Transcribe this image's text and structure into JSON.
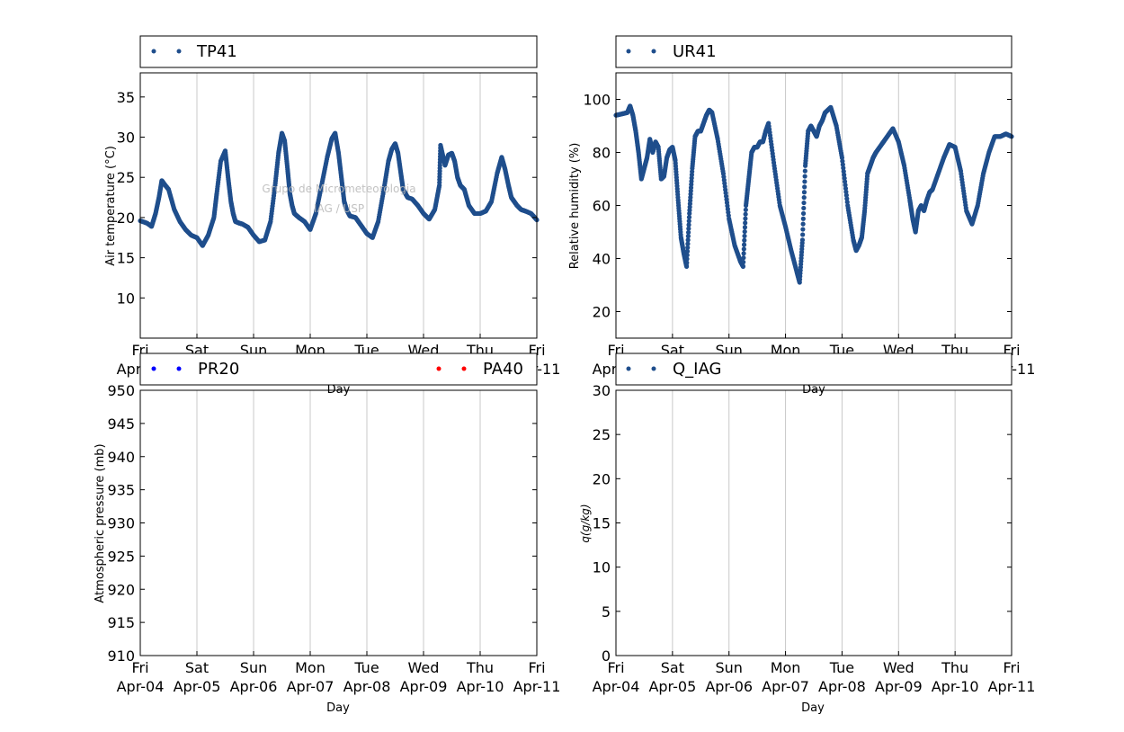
{
  "watermark": {
    "line1": "Grupo de Micrometeorologia",
    "line2": "IAG / USP"
  },
  "days": [
    {
      "dow": "Fri",
      "date": "Apr-04"
    },
    {
      "dow": "Sat",
      "date": "Apr-05"
    },
    {
      "dow": "Sun",
      "date": "Apr-06"
    },
    {
      "dow": "Mon",
      "date": "Apr-07"
    },
    {
      "dow": "Tue",
      "date": "Apr-08"
    },
    {
      "dow": "Wed",
      "date": "Apr-09"
    },
    {
      "dow": "Thu",
      "date": "Apr-10"
    },
    {
      "dow": "Fri",
      "date": "Apr-11"
    }
  ],
  "colors": {
    "series": "#1f4e8c",
    "pr20": "#0000ff",
    "pa40": "#ff0000",
    "grid": "#c8c8c8"
  },
  "chart_data": [
    {
      "type": "scatter",
      "id": "temp",
      "legend": [
        "TP41"
      ],
      "ylabel": "Air temperature (°C)",
      "xlabel": "Day",
      "ylim": [
        5,
        38
      ],
      "yticks": [
        "10",
        "15",
        "20",
        "25",
        "30",
        "35"
      ],
      "xlim": [
        "2025-04-04 00:00",
        "2025-04-11 00:00"
      ],
      "series": [
        {
          "name": "TP41",
          "color": "#1f4e8c",
          "x": [
            0,
            0.12,
            0.2,
            0.27,
            0.33,
            0.38,
            0.42,
            0.5,
            0.6,
            0.7,
            0.8,
            0.9,
            1.0,
            1.1,
            1.2,
            1.3,
            1.35,
            1.42,
            1.5,
            1.55,
            1.6,
            1.64,
            1.68,
            1.75,
            1.8,
            1.9,
            2.0,
            2.1,
            2.2,
            2.3,
            2.38,
            2.44,
            2.5,
            2.55,
            2.6,
            2.64,
            2.68,
            2.72,
            2.8,
            2.9,
            3.0,
            3.1,
            3.2,
            3.3,
            3.38,
            3.44,
            3.5,
            3.55,
            3.6,
            3.64,
            3.7,
            3.8,
            3.9,
            4.0,
            4.1,
            4.2,
            4.3,
            4.38,
            4.44,
            4.5,
            4.55,
            4.6,
            4.64,
            4.68,
            4.72,
            4.8,
            4.9,
            5.0,
            5.1,
            5.2,
            5.28,
            5.3,
            5.38,
            5.44,
            5.5,
            5.55,
            5.6,
            5.65,
            5.72,
            5.8,
            5.9,
            6.0,
            6.1,
            6.2,
            6.3,
            6.38,
            6.44,
            6.5,
            6.55,
            6.6,
            6.65,
            6.72,
            6.8,
            6.9,
            7.0
          ],
          "y": [
            19.6,
            19.3,
            18.9,
            20.5,
            22.5,
            24.6,
            24.2,
            23.5,
            21.0,
            19.5,
            18.5,
            17.8,
            17.5,
            16.5,
            17.8,
            20.0,
            23.0,
            27.0,
            28.3,
            25.0,
            22.0,
            20.5,
            19.5,
            19.3,
            19.2,
            18.8,
            17.8,
            17.0,
            17.2,
            19.5,
            24.0,
            28.0,
            30.5,
            29.5,
            26.0,
            23.0,
            21.5,
            20.5,
            20.0,
            19.5,
            18.5,
            20.5,
            24.0,
            27.5,
            29.8,
            30.5,
            28.0,
            25.0,
            22.0,
            21.0,
            20.2,
            20.0,
            19.0,
            18.0,
            17.5,
            19.5,
            23.5,
            27.0,
            28.5,
            29.2,
            28.0,
            25.5,
            23.5,
            23.0,
            22.5,
            22.3,
            21.5,
            20.5,
            19.8,
            21.0,
            24.0,
            29.0,
            26.5,
            27.8,
            28.0,
            27.0,
            25.0,
            24.0,
            23.5,
            21.5,
            20.5,
            20.5,
            20.8,
            22.0,
            25.5,
            27.5,
            26.0,
            24.0,
            22.5,
            22.0,
            21.5,
            21.0,
            20.8,
            20.5,
            19.7
          ]
        }
      ]
    },
    {
      "type": "scatter",
      "id": "humidity",
      "legend": [
        "UR41"
      ],
      "ylabel": "Relative humidity (%)",
      "xlabel": "Day",
      "ylim": [
        10,
        110
      ],
      "yticks": [
        "20",
        "40",
        "60",
        "80",
        "100"
      ],
      "xlim": [
        "2025-04-04 00:00",
        "2025-04-11 00:00"
      ],
      "series": [
        {
          "name": "UR41",
          "color": "#1f4e8c",
          "x": [
            0,
            0.1,
            0.2,
            0.25,
            0.3,
            0.35,
            0.4,
            0.45,
            0.5,
            0.55,
            0.6,
            0.65,
            0.7,
            0.75,
            0.8,
            0.85,
            0.9,
            0.95,
            1.0,
            1.05,
            1.1,
            1.15,
            1.2,
            1.25,
            1.3,
            1.35,
            1.4,
            1.45,
            1.5,
            1.55,
            1.6,
            1.65,
            1.7,
            1.8,
            1.9,
            2.0,
            2.1,
            2.2,
            2.25,
            2.3,
            2.35,
            2.4,
            2.45,
            2.5,
            2.55,
            2.6,
            2.65,
            2.7,
            2.8,
            2.9,
            3.0,
            3.1,
            3.2,
            3.25,
            3.3,
            3.35,
            3.4,
            3.45,
            3.5,
            3.55,
            3.6,
            3.65,
            3.7,
            3.8,
            3.9,
            4.0,
            4.1,
            4.2,
            4.25,
            4.3,
            4.35,
            4.4,
            4.45,
            4.5,
            4.55,
            4.6,
            4.7,
            4.8,
            4.9,
            5.0,
            5.1,
            5.2,
            5.25,
            5.3,
            5.35,
            5.4,
            5.45,
            5.5,
            5.55,
            5.6,
            5.7,
            5.8,
            5.9,
            6.0,
            6.1,
            6.2,
            6.3,
            6.4,
            6.5,
            6.6,
            6.7,
            6.8,
            6.9,
            7.0
          ],
          "y": [
            94,
            94.5,
            95,
            97.5,
            94,
            88,
            80,
            70,
            74,
            78,
            85,
            80,
            84,
            82,
            70,
            71,
            78,
            81,
            82,
            77,
            62,
            48,
            42,
            37,
            57,
            74,
            86,
            88,
            88,
            91,
            94,
            96,
            95,
            85,
            72,
            55,
            45,
            39,
            37,
            60,
            70,
            80,
            82,
            82,
            84,
            84,
            88,
            91,
            75,
            60,
            52,
            43,
            35,
            31,
            47,
            75,
            88,
            90,
            88,
            86,
            90,
            92,
            95,
            97,
            90,
            78,
            60,
            47,
            43,
            45,
            48,
            58,
            72,
            75,
            78,
            80,
            83,
            86,
            89,
            84,
            75,
            62,
            55,
            50,
            58,
            60,
            58,
            62,
            65,
            66,
            72,
            78,
            83,
            82,
            73,
            58,
            53,
            60,
            72,
            80,
            86,
            86,
            87,
            86
          ]
        }
      ]
    },
    {
      "type": "scatter",
      "id": "pressure",
      "legend": [
        "PR20",
        "PA40"
      ],
      "ylabel": "Atmospheric pressure (mb)",
      "xlabel": "Day",
      "ylim": [
        910,
        950
      ],
      "yticks": [
        "910",
        "915",
        "920",
        "925",
        "930",
        "935",
        "940",
        "945",
        "950"
      ],
      "xlim": [
        "2025-04-04 00:00",
        "2025-04-11 00:00"
      ],
      "series": [
        {
          "name": "PR20",
          "color": "#0000ff",
          "x": [],
          "y": []
        },
        {
          "name": "PA40",
          "color": "#ff0000",
          "x": [],
          "y": []
        }
      ]
    },
    {
      "type": "scatter",
      "id": "specific_humidity",
      "legend": [
        "Q_IAG"
      ],
      "ylabel": "q(g/kg)",
      "xlabel": "Day",
      "ylim": [
        0,
        30
      ],
      "yticks": [
        "0",
        "5",
        "10",
        "15",
        "20",
        "25",
        "30"
      ],
      "xlim": [
        "2025-04-04 00:00",
        "2025-04-11 00:00"
      ],
      "series": [
        {
          "name": "Q_IAG",
          "color": "#1f4e8c",
          "x": [],
          "y": []
        }
      ]
    }
  ]
}
